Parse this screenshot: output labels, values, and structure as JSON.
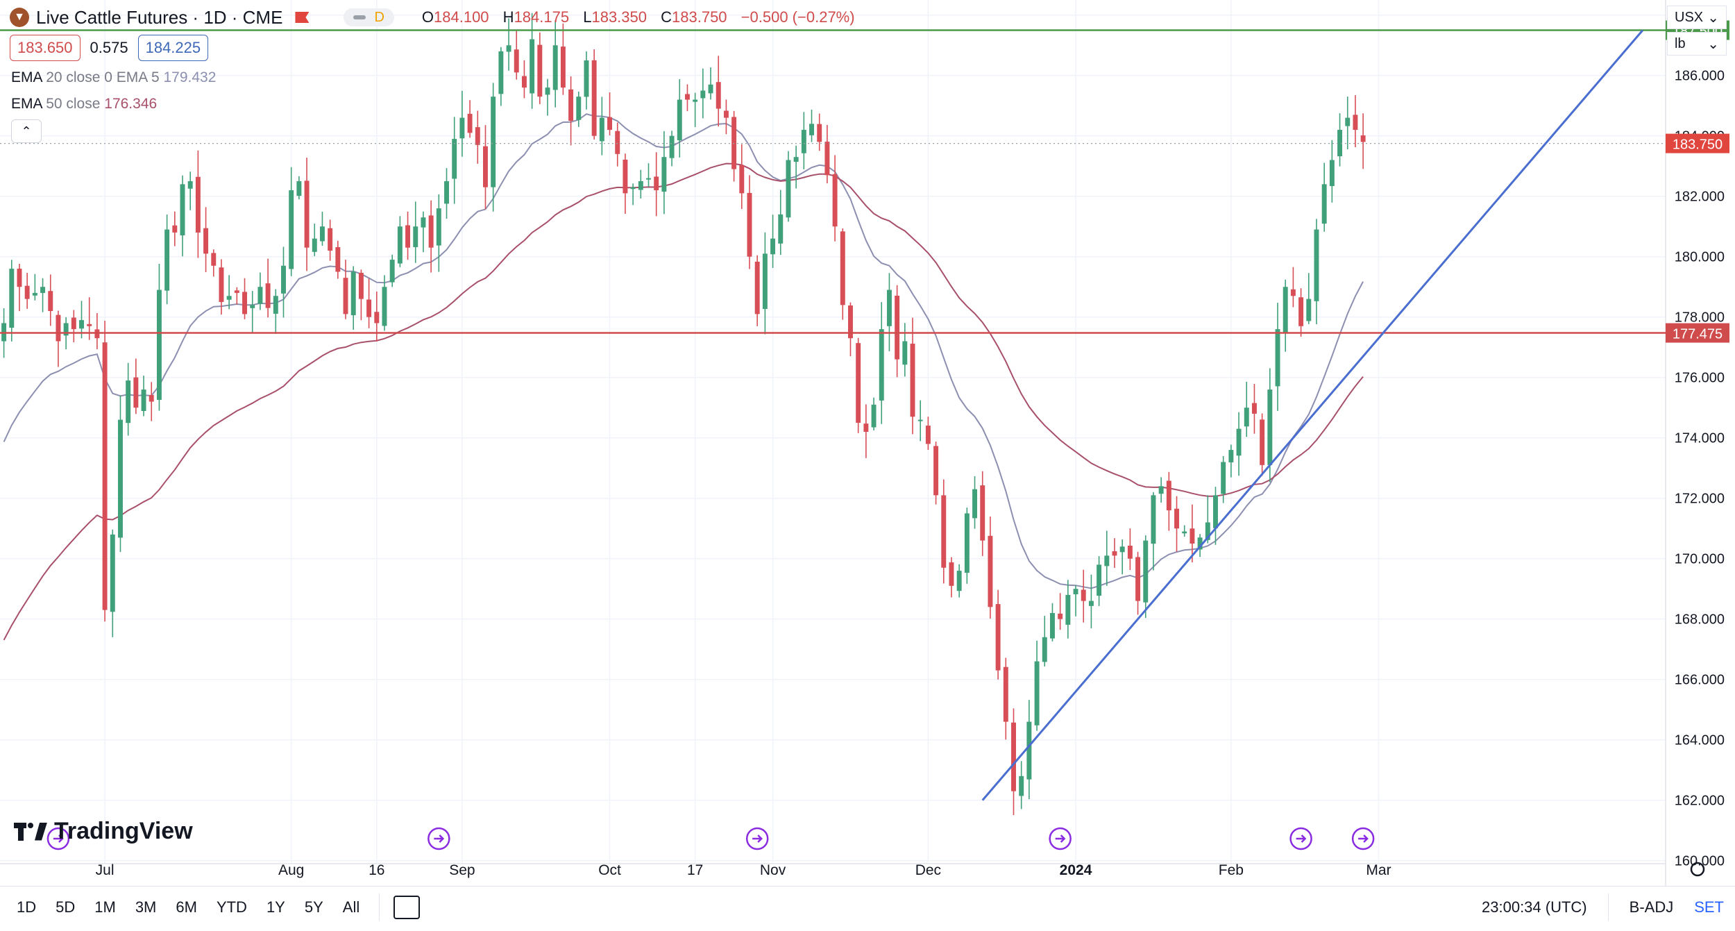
{
  "header": {
    "title": "Live Cattle Futures · 1D · CME",
    "interval_badge": "D",
    "ohlc": [
      {
        "label": "O",
        "value": "184.100"
      },
      {
        "label": "H",
        "value": "184.175"
      },
      {
        "label": "L",
        "value": "183.350"
      },
      {
        "label": "C",
        "value": "183.750"
      }
    ],
    "change": "−0.500 (−0.27%)",
    "bid": "183.650",
    "spread": "0.575",
    "ask": "184.225"
  },
  "indicators": [
    {
      "name": "EMA",
      "params": "20 close 0 EMA 5",
      "value": "179.432",
      "color": "#8c8fb0"
    },
    {
      "name": "EMA",
      "params": "50 close",
      "value": "176.346",
      "color": "#a8506a"
    }
  ],
  "selectors": {
    "currency": "USX",
    "unit": "lb"
  },
  "brand": "TradingView",
  "bottom_bar": {
    "ranges": [
      "1D",
      "5D",
      "1M",
      "3M",
      "6M",
      "YTD",
      "1Y",
      "5Y",
      "All"
    ],
    "time": "23:00:34 (UTC)",
    "adjust": "B-ADJ",
    "set": "SET"
  },
  "chart_data": {
    "type": "candlestick",
    "title": "Live Cattle Futures · 1D · CME",
    "y_ticks": [
      160,
      162,
      164,
      166,
      168,
      170,
      172,
      174,
      176,
      178,
      180,
      182,
      184,
      186,
      188
    ],
    "ylim": [
      159.9,
      188.5
    ],
    "x_tick_labels": [
      {
        "label": "Jul",
        "index": 13,
        "bold": false
      },
      {
        "label": "Aug",
        "index": 37,
        "bold": false
      },
      {
        "label": "16",
        "index": 48,
        "bold": false
      },
      {
        "label": "Sep",
        "index": 59,
        "bold": false
      },
      {
        "label": "Oct",
        "index": 78,
        "bold": false
      },
      {
        "label": "17",
        "index": 89,
        "bold": false
      },
      {
        "label": "Nov",
        "index": 99,
        "bold": false
      },
      {
        "label": "Dec",
        "index": 119,
        "bold": false
      },
      {
        "label": "2024",
        "index": 138,
        "bold": true
      },
      {
        "label": "Feb",
        "index": 158,
        "bold": false
      },
      {
        "label": "Mar",
        "index": 177,
        "bold": false
      }
    ],
    "closes": [
      177.8,
      179.6,
      179.0,
      178.6,
      178.8,
      179.0,
      178.2,
      177.2,
      177.8,
      177.6,
      177.9,
      177.7,
      177.3,
      168.3,
      170.8,
      174.6,
      175.9,
      175.0,
      175.6,
      175.2,
      178.9,
      180.9,
      180.8,
      182.4,
      182.5,
      180.8,
      180.1,
      179.7,
      178.5,
      178.7,
      178.8,
      178.1,
      178.4,
      179.0,
      178.3,
      178.7,
      179.7,
      182.2,
      182.5,
      180.3,
      180.6,
      181.0,
      180.2,
      179.5,
      178.1,
      179.5,
      178.6,
      178.0,
      177.8,
      179.0,
      179.9,
      181.0,
      180.3,
      181.0,
      181.3,
      180.3,
      181.6,
      182.5,
      183.9,
      184.6,
      184.1,
      183.7,
      182.3,
      185.3,
      186.8,
      187.0,
      186.1,
      185.6,
      187.2,
      185.3,
      185.6,
      187.0,
      185.6,
      184.5,
      185.3,
      186.5,
      184.0,
      184.6,
      184.2,
      183.4,
      182.1,
      182.3,
      182.5,
      182.6,
      182.2,
      183.3,
      184.0,
      185.2,
      185.2,
      185.2,
      185.5,
      185.7,
      184.9,
      184.6,
      182.9,
      182.1,
      180.0,
      178.1,
      180.1,
      180.6,
      181.4,
      183.2,
      183.3,
      184.2,
      184.4,
      183.8,
      182.7,
      181.0,
      178.4,
      177.3,
      174.5,
      174.2,
      175.1,
      177.6,
      178.9,
      176.6,
      177.2,
      174.7,
      174.6,
      173.8,
      172.1,
      169.7,
      169.1,
      169.6,
      171.5,
      172.3,
      170.6,
      168.4,
      166.3,
      164.6,
      162.3,
      162.8,
      164.6,
      166.6,
      167.4,
      168.2,
      168.0,
      168.8,
      169.0,
      168.6,
      168.6,
      169.8,
      170.1,
      170.1,
      170.4,
      170.0,
      168.6,
      170.6,
      172.1,
      172.4,
      171.6,
      171.0,
      170.9,
      170.5,
      170.7,
      171.2,
      172.1,
      173.2,
      173.6,
      174.3,
      175.0,
      174.8,
      173.1,
      175.6,
      177.6,
      179.0,
      178.7,
      177.7,
      178.6,
      180.9,
      182.4,
      183.2,
      184.2,
      184.6,
      184.2,
      183.8
    ],
    "extra_candles": 38,
    "overlays": [
      {
        "name": "EMA 20",
        "color": "#8c8fb0"
      },
      {
        "name": "EMA 50",
        "color": "#a8506a"
      }
    ],
    "horizontal_lines": [
      {
        "value": 187.5,
        "label": "187.500",
        "color": "#4a9a4a"
      },
      {
        "value": 177.475,
        "label": "177.475",
        "color": "#d04b4b"
      }
    ],
    "last_price": {
      "value": 183.75,
      "label": "183.750",
      "color": "#e0453e"
    },
    "trendline": {
      "start": {
        "index": 126,
        "value": 162.0
      },
      "end": {
        "index": 211,
        "value": 187.5
      },
      "color": "#4a6ed0"
    },
    "event_markers": [
      7,
      56,
      97,
      136,
      167,
      175
    ],
    "colors": {
      "up": "#3fa07a",
      "down": "#d84e56",
      "grid": "#f0f3fa"
    }
  }
}
